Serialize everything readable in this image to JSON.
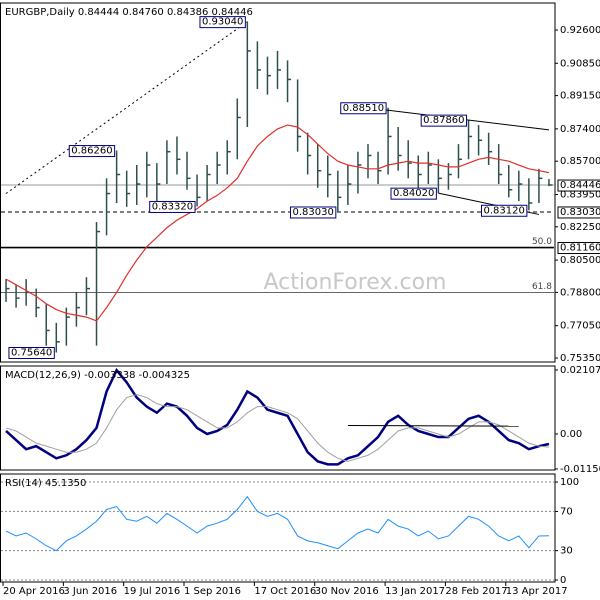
{
  "chart_data": [
    {
      "type": "ohlc",
      "title": "EURGBP,Daily  0.84444 0.84760 0.84386 0.84446",
      "watermark": "ActionForex.com",
      "color": "#2f4f4f",
      "high": [
        0.795,
        0.792,
        0.795,
        0.79,
        0.782,
        0.772,
        0.78,
        0.788,
        0.796,
        0.825,
        0.848,
        0.8626,
        0.852,
        0.855,
        0.862,
        0.856,
        0.868,
        0.87,
        0.862,
        0.85,
        0.855,
        0.862,
        0.868,
        0.89,
        0.9304,
        0.92,
        0.912,
        0.915,
        0.91,
        0.9,
        0.872,
        0.866,
        0.86,
        0.852,
        0.855,
        0.862,
        0.866,
        0.862,
        0.8851,
        0.875,
        0.868,
        0.86,
        0.862,
        0.858,
        0.856,
        0.866,
        0.8786,
        0.876,
        0.872,
        0.866,
        0.855,
        0.852,
        0.848,
        0.853,
        0.8476
      ],
      "low": [
        0.783,
        0.78,
        0.781,
        0.775,
        0.76,
        0.7564,
        0.76,
        0.77,
        0.776,
        0.76,
        0.818,
        0.835,
        0.833,
        0.834,
        0.838,
        0.835,
        0.845,
        0.85,
        0.842,
        0.8332,
        0.836,
        0.845,
        0.85,
        0.858,
        0.875,
        0.895,
        0.892,
        0.895,
        0.888,
        0.862,
        0.85,
        0.843,
        0.838,
        0.8303,
        0.834,
        0.84,
        0.848,
        0.845,
        0.85,
        0.852,
        0.848,
        0.843,
        0.845,
        0.8402,
        0.842,
        0.848,
        0.858,
        0.86,
        0.855,
        0.845,
        0.838,
        0.836,
        0.8312,
        0.835,
        0.8439
      ],
      "close": [
        0.79,
        0.785,
        0.788,
        0.78,
        0.768,
        0.762,
        0.775,
        0.78,
        0.79,
        0.82,
        0.84,
        0.85,
        0.84,
        0.845,
        0.855,
        0.845,
        0.862,
        0.858,
        0.848,
        0.838,
        0.85,
        0.855,
        0.862,
        0.88,
        0.915,
        0.905,
        0.902,
        0.905,
        0.9,
        0.87,
        0.86,
        0.852,
        0.85,
        0.838,
        0.845,
        0.855,
        0.86,
        0.852,
        0.87,
        0.86,
        0.856,
        0.85,
        0.855,
        0.848,
        0.85,
        0.858,
        0.87,
        0.868,
        0.862,
        0.85,
        0.842,
        0.845,
        0.835,
        0.848,
        0.8445
      ],
      "ma": {
        "color": "#e0302a",
        "values": [
          0.795,
          0.792,
          0.789,
          0.786,
          0.782,
          0.779,
          0.777,
          0.776,
          0.775,
          0.773,
          0.78,
          0.788,
          0.797,
          0.805,
          0.812,
          0.817,
          0.822,
          0.826,
          0.829,
          0.832,
          0.836,
          0.839,
          0.843,
          0.848,
          0.857,
          0.865,
          0.87,
          0.874,
          0.876,
          0.875,
          0.871,
          0.866,
          0.861,
          0.857,
          0.855,
          0.854,
          0.853,
          0.853,
          0.855,
          0.856,
          0.857,
          0.856,
          0.856,
          0.855,
          0.854,
          0.854,
          0.856,
          0.858,
          0.859,
          0.858,
          0.857,
          0.855,
          0.853,
          0.852,
          0.851
        ]
      },
      "ylim": [
        0.7514,
        0.9402
      ],
      "yticks": [
        {
          "value": 0.926,
          "label": "0.92600"
        },
        {
          "value": 0.9085,
          "label": "0.90850"
        },
        {
          "value": 0.8915,
          "label": "0.89150"
        },
        {
          "value": 0.874,
          "label": "0.87400"
        },
        {
          "value": 0.857,
          "label": "0.85700"
        },
        {
          "value": 0.8395,
          "label": "0.83950"
        },
        {
          "value": 0.8225,
          "label": "0.82250"
        },
        {
          "value": 0.805,
          "label": "0.80500"
        },
        {
          "value": 0.788,
          "label": "0.78800"
        },
        {
          "value": 0.7705,
          "label": "0.77050"
        },
        {
          "value": 0.7535,
          "label": "0.75350"
        }
      ],
      "levels": [
        {
          "value": 0.84446,
          "label": "0.84446",
          "style": "current"
        },
        {
          "value": 0.8303,
          "label": "0.83030",
          "style": "dashed"
        },
        {
          "value": 0.8116,
          "label": "0.81160",
          "fib": "50.0",
          "style": "bold"
        },
        {
          "value": 0.788,
          "fib": "61.8",
          "style": "thin"
        }
      ],
      "trendlines": [
        {
          "points": [
            [
              0,
              0.84
            ],
            [
              24,
              0.9304
            ]
          ],
          "style": "dotted"
        },
        {
          "points": [
            [
              36,
              0.8851
            ],
            [
              54,
              0.8735
            ]
          ],
          "style": "solid"
        },
        {
          "points": [
            [
              43,
              0.8402
            ],
            [
              53,
              0.829
            ]
          ],
          "style": "solid"
        }
      ],
      "annotations": [
        {
          "text": "0.93040",
          "x": 24,
          "y": 0.9304
        },
        {
          "text": "0.86260",
          "x": 11,
          "y": 0.8626
        },
        {
          "text": "0.83320",
          "x": 19,
          "y": 0.8332
        },
        {
          "text": "0.83030",
          "x": 33,
          "y": 0.8303
        },
        {
          "text": "0.88510",
          "x": 38,
          "y": 0.8851
        },
        {
          "text": "0.87860",
          "x": 46,
          "y": 0.8786
        },
        {
          "text": "0.84020",
          "x": 43,
          "y": 0.8402
        },
        {
          "text": "0.83120",
          "x": 52,
          "y": 0.8312
        },
        {
          "text": "0.75640",
          "x": 5,
          "y": 0.7564
        }
      ]
    },
    {
      "type": "line",
      "title": "MACD(12,26,9) -0.003338 -0.004325",
      "series": [
        {
          "color": "#000080",
          "width": 2.5,
          "values": [
            0.001,
            -0.002,
            -0.005,
            -0.004,
            -0.006,
            -0.008,
            -0.007,
            -0.005,
            -0.002,
            0.002,
            0.014,
            0.021,
            0.017,
            0.012,
            0.009,
            0.007,
            0.01,
            0.009,
            0.006,
            0.002,
            0.0,
            0.001,
            0.003,
            0.008,
            0.014,
            0.012,
            0.008,
            0.007,
            0.006,
            0.0,
            -0.006,
            -0.009,
            -0.01,
            -0.01,
            -0.008,
            -0.007,
            -0.004,
            -0.001,
            0.004,
            0.006,
            0.003,
            0.001,
            0.0,
            -0.001,
            -0.001,
            0.002,
            0.005,
            0.006,
            0.004,
            0.001,
            -0.002,
            -0.003,
            -0.005,
            -0.004,
            -0.0033
          ]
        },
        {
          "color": "#a0a0a0",
          "width": 1,
          "values": [
            0.002,
            0.001,
            -0.001,
            -0.003,
            -0.004,
            -0.005,
            -0.006,
            -0.006,
            -0.005,
            -0.003,
            0.002,
            0.008,
            0.012,
            0.013,
            0.012,
            0.01,
            0.009,
            0.009,
            0.008,
            0.006,
            0.004,
            0.002,
            0.002,
            0.004,
            0.007,
            0.009,
            0.009,
            0.008,
            0.007,
            0.005,
            0.001,
            -0.003,
            -0.006,
            -0.008,
            -0.009,
            -0.008,
            -0.007,
            -0.005,
            -0.002,
            0.001,
            0.002,
            0.002,
            0.001,
            0.0,
            -0.001,
            0.0,
            0.002,
            0.004,
            0.004,
            0.003,
            0.001,
            -0.001,
            -0.003,
            -0.004,
            -0.0043
          ]
        }
      ],
      "ylim": [
        -0.01185,
        0.02239
      ],
      "yticks": [
        0.021074,
        {
          "value": 0,
          "label": "0.00"
        },
        -0.011507
      ],
      "trendlines": [
        {
          "points": [
            [
              34,
              0.0028
            ],
            [
              51,
              0.0026
            ]
          ],
          "style": "solid"
        }
      ]
    },
    {
      "type": "line",
      "title": "RSI(14) 45.1350",
      "series": [
        {
          "color": "#1e90ff",
          "width": 1,
          "values": [
            50,
            45,
            48,
            42,
            35,
            30,
            40,
            45,
            52,
            60,
            72,
            75,
            62,
            60,
            65,
            58,
            68,
            62,
            55,
            48,
            55,
            58,
            62,
            72,
            85,
            70,
            65,
            68,
            62,
            45,
            40,
            38,
            35,
            32,
            40,
            48,
            52,
            48,
            62,
            55,
            52,
            45,
            50,
            42,
            45,
            55,
            65,
            62,
            55,
            45,
            40,
            45,
            33,
            45,
            45.135
          ]
        }
      ],
      "ylim": [
        -2,
        108.2
      ],
      "yticks": [
        100,
        70,
        30,
        0
      ],
      "grid": true,
      "xticks": [
        {
          "value": 0,
          "label": "20 Apr 2016"
        },
        {
          "value": 6,
          "label": "3 Jun 2016"
        },
        {
          "value": 12,
          "label": "19 Jul 2016"
        },
        {
          "value": 18,
          "label": "1 Sep 2016"
        },
        {
          "value": 25,
          "label": "17 Oct 2016"
        },
        {
          "value": 31,
          "label": "30 Nov 2016"
        },
        {
          "value": 38,
          "label": "13 Jan 2017"
        },
        {
          "value": 44,
          "label": "28 Feb 2017"
        },
        {
          "value": 50,
          "label": "13 Apr 2017"
        }
      ]
    }
  ]
}
